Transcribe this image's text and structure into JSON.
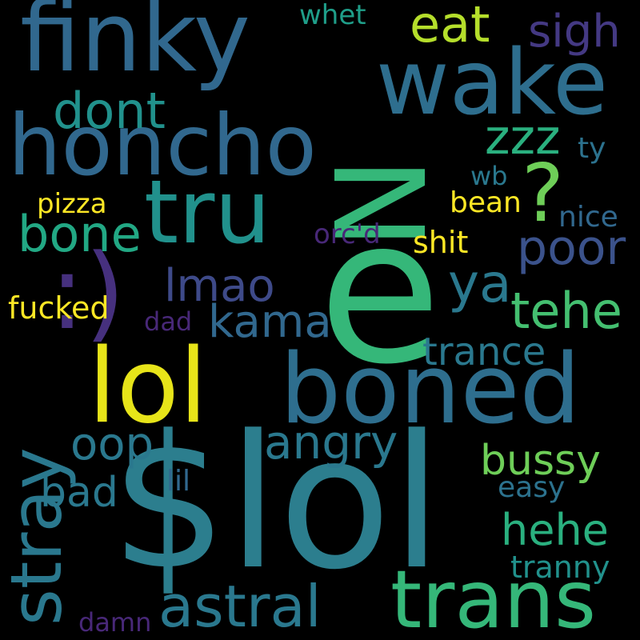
{
  "palette": {
    "background": "#000000",
    "teal": "#2d7f8e",
    "blue_teal": "#31688e",
    "green": "#35b779",
    "light_green": "#6ece58",
    "lime": "#b5de2b",
    "yellow": "#fde725",
    "purple": "#482878",
    "dark_purple": "#443983"
  },
  "words": [
    {
      "id": "lol-dollar",
      "text": "$lol",
      "color": "#2c7e8e"
    },
    {
      "id": "e",
      "text": "e",
      "color": "#35b779"
    },
    {
      "id": "n",
      "text": "N",
      "color": "#35b779"
    },
    {
      "id": "boned",
      "text": "boned",
      "color": "#2e6e8e"
    },
    {
      "id": "lol",
      "text": "lol",
      "color": "#e7e419"
    },
    {
      "id": "finky",
      "text": "finky",
      "color": "#31688e"
    },
    {
      "id": "wake",
      "text": "wake",
      "color": "#2e6e8e"
    },
    {
      "id": "honcho",
      "text": "honcho",
      "color": "#31688e"
    },
    {
      "id": "tru",
      "text": "tru",
      "color": "#21918c"
    },
    {
      "id": "trans",
      "text": "trans",
      "color": "#35b779"
    },
    {
      "id": "stray",
      "text": "stray",
      "color": "#2a788e"
    },
    {
      "id": "astral",
      "text": "astral",
      "color": "#2a788e"
    },
    {
      "id": "smiley",
      "text": ":)",
      "color": "#46307e"
    },
    {
      "id": "question",
      "text": "?",
      "color": "#6ece58"
    },
    {
      "id": "eat",
      "text": "eat",
      "color": "#b5de2b"
    },
    {
      "id": "sigh",
      "text": "sigh",
      "color": "#443983"
    },
    {
      "id": "dont",
      "text": "dont",
      "color": "#21918c"
    },
    {
      "id": "zzz",
      "text": "zzz",
      "color": "#2ab07f"
    },
    {
      "id": "bone",
      "text": "bone",
      "color": "#22a884"
    },
    {
      "id": "poor",
      "text": "poor",
      "color": "#3b528b"
    },
    {
      "id": "ya",
      "text": "ya",
      "color": "#2a788e"
    },
    {
      "id": "lmao",
      "text": "lmao",
      "color": "#3e4a89"
    },
    {
      "id": "kama",
      "text": "kama",
      "color": "#31688e"
    },
    {
      "id": "tehe",
      "text": "tehe",
      "color": "#44bf70"
    },
    {
      "id": "trance",
      "text": "trance",
      "color": "#2a788e"
    },
    {
      "id": "oop",
      "text": "oop",
      "color": "#2a788e"
    },
    {
      "id": "angry",
      "text": "angry",
      "color": "#2a788e"
    },
    {
      "id": "bussy",
      "text": "bussy",
      "color": "#6ece58"
    },
    {
      "id": "bad",
      "text": "bad",
      "color": "#2a788e"
    },
    {
      "id": "hehe",
      "text": "hehe",
      "color": "#2ab07f"
    },
    {
      "id": "whet",
      "text": "whet",
      "color": "#1f9e89"
    },
    {
      "id": "ty",
      "text": "ty",
      "color": "#2c728e"
    },
    {
      "id": "wb",
      "text": "wb",
      "color": "#2a788e"
    },
    {
      "id": "pizza",
      "text": "pizza",
      "color": "#fde725"
    },
    {
      "id": "bean",
      "text": "bean",
      "color": "#fde725"
    },
    {
      "id": "nice",
      "text": "nice",
      "color": "#31688e"
    },
    {
      "id": "orcd",
      "text": "orc'd",
      "color": "#482878"
    },
    {
      "id": "shit",
      "text": "shit",
      "color": "#fde725"
    },
    {
      "id": "fucked",
      "text": "fucked",
      "color": "#fde725"
    },
    {
      "id": "dad",
      "text": "dad",
      "color": "#482878"
    },
    {
      "id": "lil",
      "text": "lil",
      "color": "#31688e"
    },
    {
      "id": "easy",
      "text": "easy",
      "color": "#2c728e"
    },
    {
      "id": "tranny",
      "text": "tranny",
      "color": "#21918c"
    },
    {
      "id": "damn",
      "text": "damn",
      "color": "#482878"
    }
  ]
}
